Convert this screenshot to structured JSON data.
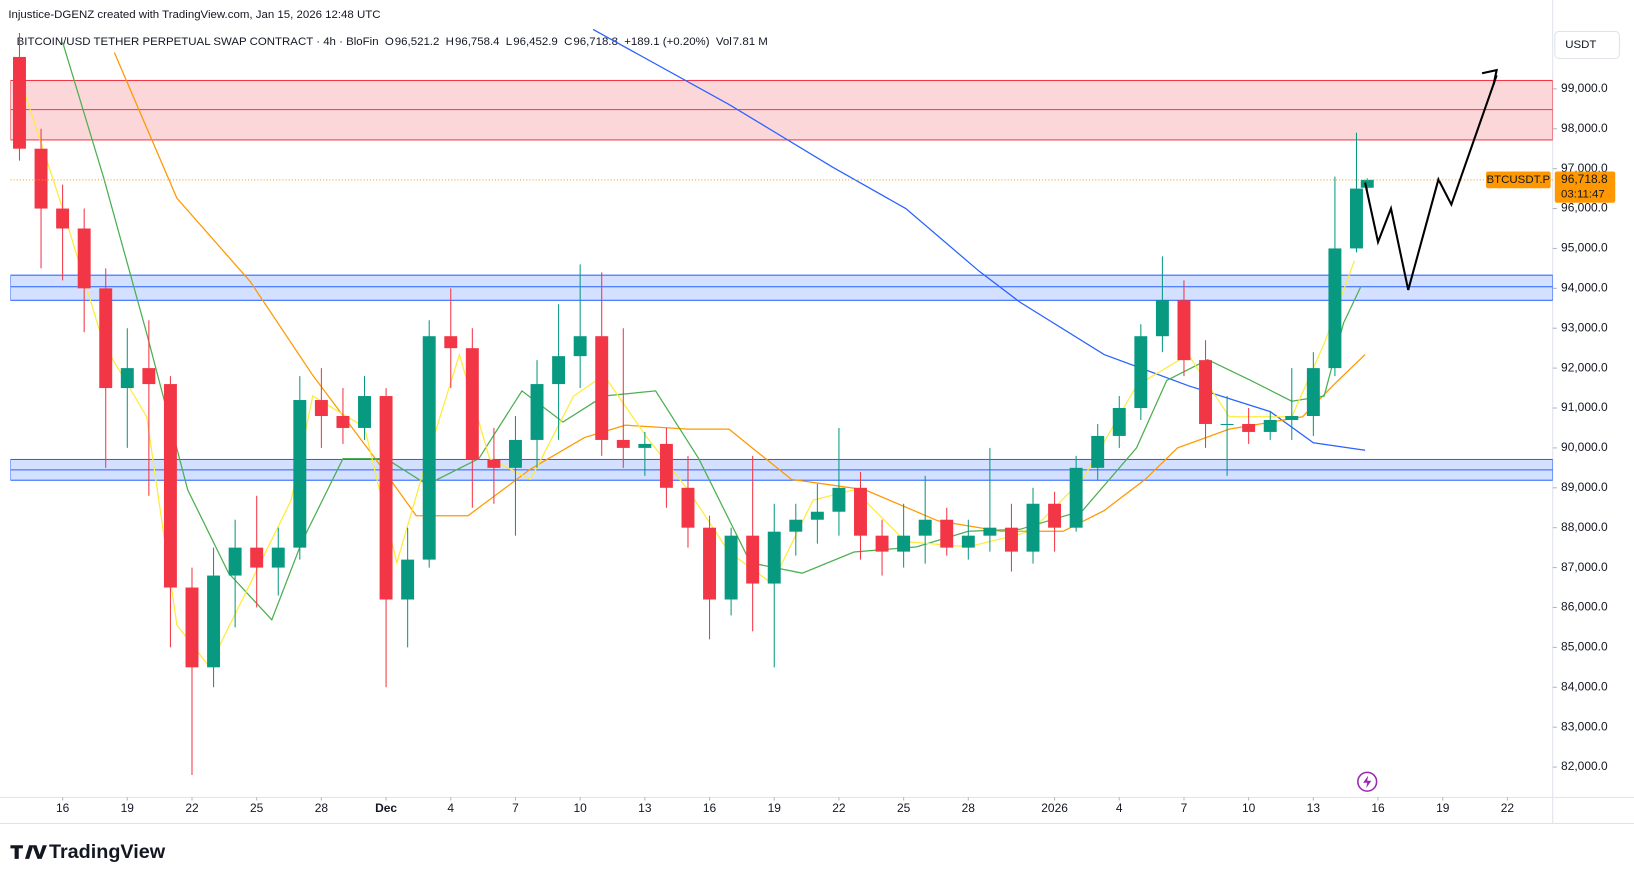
{
  "header": {
    "credit": "Injustice-DGENZ created with TradingView.com, Jan 15, 2026 12:48 UTC",
    "symbol": "BITCOIN/USD TETHER PERPETUAL SWAP CONTRACT · 4h · BloFin",
    "legend": [
      {
        "key": "O",
        "value": "96,521.2"
      },
      {
        "key": "H",
        "value": "96,758.4"
      },
      {
        "key": "L",
        "value": "96,452.9"
      },
      {
        "key": "C",
        "value": "96,718.8"
      },
      {
        "key": "",
        "value": "+189.1 (+0.20%)"
      },
      {
        "key": "Vol",
        "value": "7.81 M"
      }
    ],
    "currency": "USDT"
  },
  "footer": {
    "brand": "TradingView"
  },
  "chart_data": {
    "type": "candlestick",
    "up_color": "#089981",
    "down_color": "#f23645",
    "xlim": [
      -2.42,
      69.1
    ],
    "ylim": [
      81240,
      100570
    ],
    "xticks": [
      {
        "value": 0,
        "label": "16"
      },
      {
        "value": 3,
        "label": "19"
      },
      {
        "value": 6,
        "label": "22"
      },
      {
        "value": 9,
        "label": "25"
      },
      {
        "value": 12,
        "label": "28"
      },
      {
        "value": 15,
        "label": "Dec"
      },
      {
        "value": 18,
        "label": "4"
      },
      {
        "value": 21,
        "label": "7"
      },
      {
        "value": 24,
        "label": "10"
      },
      {
        "value": 27,
        "label": "13"
      },
      {
        "value": 30,
        "label": "16"
      },
      {
        "value": 33,
        "label": "19"
      },
      {
        "value": 36,
        "label": "22"
      },
      {
        "value": 39,
        "label": "25"
      },
      {
        "value": 42,
        "label": "28"
      },
      {
        "value": 46,
        "label": "2026"
      },
      {
        "value": 49,
        "label": "4"
      },
      {
        "value": 52,
        "label": "7"
      },
      {
        "value": 55,
        "label": "10"
      },
      {
        "value": 58,
        "label": "13"
      },
      {
        "value": 61,
        "label": "16"
      },
      {
        "value": 64,
        "label": "19"
      },
      {
        "value": 67,
        "label": "22"
      }
    ],
    "yticks": [
      {
        "value": 82000,
        "label": "82,000.0"
      },
      {
        "value": 83000,
        "label": "83,000.0"
      },
      {
        "value": 84000,
        "label": "84,000.0"
      },
      {
        "value": 85000,
        "label": "85,000.0"
      },
      {
        "value": 86000,
        "label": "86,000.0"
      },
      {
        "value": 87000,
        "label": "87,000.0"
      },
      {
        "value": 88000,
        "label": "88,000.0"
      },
      {
        "value": 89000,
        "label": "89,000.0"
      },
      {
        "value": 90000,
        "label": "90,000.0"
      },
      {
        "value": 91000,
        "label": "91,000.0"
      },
      {
        "value": 92000,
        "label": "92,000.0"
      },
      {
        "value": 93000,
        "label": "93,000.0"
      },
      {
        "value": 94000,
        "label": "94,000.0"
      },
      {
        "value": 95000,
        "label": "95,000.0"
      },
      {
        "value": 96000,
        "label": "96,000.0"
      },
      {
        "value": 97000,
        "label": "97,000.0"
      },
      {
        "value": 98000,
        "label": "98,000.0"
      },
      {
        "value": 99000,
        "label": "99,000.0"
      }
    ],
    "candles": {
      "x": [
        -2,
        -1,
        0,
        1,
        2,
        3,
        4,
        5,
        6,
        7,
        8,
        9,
        10,
        11,
        12,
        13,
        14,
        15,
        16,
        17,
        18,
        19,
        20,
        21,
        22,
        23,
        24,
        25,
        26,
        27,
        28,
        29,
        30,
        31,
        32,
        33,
        34,
        35,
        36,
        37,
        38,
        39,
        40,
        41,
        42,
        43,
        44,
        45,
        46,
        47,
        48,
        49,
        50,
        51,
        52,
        53,
        54,
        55,
        56,
        57,
        58,
        59,
        60,
        60.5
      ],
      "open": [
        99800,
        97500,
        96000,
        95500,
        94000,
        91500,
        92000,
        91600,
        86500,
        84500,
        86800,
        87500,
        87000,
        87500,
        91200,
        90800,
        90500,
        91300,
        86200,
        87200,
        92800,
        92500,
        89700,
        89500,
        90200,
        91600,
        92300,
        92800,
        90200,
        90000,
        90100,
        89000,
        88000,
        86200,
        87800,
        86600,
        87900,
        88200,
        88400,
        89000,
        87800,
        87400,
        87800,
        88200,
        87500,
        87800,
        88000,
        87400,
        88600,
        88000,
        89500,
        90300,
        91000,
        92800,
        93700,
        92200,
        90600,
        90600,
        90400,
        90700,
        90800,
        92000,
        95000,
        96521.2
      ],
      "high": [
        100400,
        98000,
        96600,
        96000,
        94500,
        93000,
        93200,
        91800,
        87000,
        87500,
        88200,
        88800,
        88000,
        91800,
        92000,
        91500,
        91800,
        91500,
        88000,
        93200,
        94000,
        93000,
        90500,
        90800,
        92200,
        93600,
        94600,
        94400,
        93000,
        90400,
        90500,
        89800,
        88300,
        88000,
        89800,
        88600,
        88600,
        89100,
        90500,
        89400,
        88200,
        88600,
        89300,
        88500,
        88200,
        90000,
        88600,
        89000,
        88900,
        89800,
        90600,
        91300,
        93100,
        94800,
        94200,
        92700,
        91300,
        91000,
        90900,
        92000,
        92400,
        96800,
        97900,
        96758.4
      ],
      "low": [
        97200,
        94500,
        94200,
        92900,
        89500,
        90000,
        88800,
        85000,
        81800,
        84000,
        85500,
        86000,
        86300,
        87200,
        90000,
        90100,
        90200,
        84000,
        85000,
        87000,
        91500,
        88500,
        88600,
        87800,
        89500,
        90200,
        91500,
        89800,
        89500,
        89300,
        88500,
        87500,
        85200,
        85800,
        85400,
        84500,
        87300,
        87600,
        87800,
        87200,
        86800,
        87000,
        87100,
        87300,
        87200,
        87400,
        86900,
        87100,
        87400,
        87900,
        89200,
        90000,
        90700,
        92400,
        91800,
        90000,
        89300,
        90100,
        90200,
        90200,
        90300,
        91800,
        94900,
        96452.9
      ],
      "close": [
        97500,
        96000,
        95500,
        94000,
        91500,
        92000,
        91600,
        86500,
        84500,
        86800,
        87500,
        87000,
        87500,
        91200,
        90800,
        90500,
        91300,
        86200,
        87200,
        92800,
        92500,
        89700,
        89500,
        90200,
        91600,
        92300,
        92800,
        90200,
        90000,
        90100,
        89000,
        88000,
        86200,
        87800,
        86600,
        87900,
        88200,
        88400,
        89000,
        87800,
        87400,
        87800,
        88200,
        87500,
        87800,
        88000,
        87400,
        88600,
        88000,
        89500,
        90300,
        91000,
        92800,
        93700,
        92200,
        90600,
        90600,
        90400,
        90700,
        90800,
        92000,
        95000,
        96500,
        96718.8
      ]
    },
    "series": [
      {
        "color": "#2962ff",
        "x": [
          24.6,
          30.9,
          35.7,
          39.1,
          42.5,
          44.4,
          48.3,
          52.2,
          56.0,
          58.0,
          60.4
        ],
        "values": [
          100490,
          98610,
          97040,
          96000,
          94430,
          93650,
          92340,
          91560,
          90910,
          90130,
          89940
        ]
      },
      {
        "color": "#ff9800",
        "x": [
          2.4,
          5.3,
          8.7,
          11.6,
          14.5,
          16.4,
          18.8,
          21.7,
          24.2,
          26.1,
          29.0,
          30.9,
          33.8,
          37.2,
          40.6,
          43.5,
          46.4,
          48.3,
          50.2,
          51.7,
          54.1,
          57.5,
          58.9,
          60.4
        ],
        "values": [
          99910,
          96260,
          94170,
          91820,
          89730,
          88300,
          88300,
          89470,
          90260,
          90570,
          90470,
          90470,
          89210,
          88950,
          88170,
          87910,
          87910,
          88430,
          89210,
          90000,
          90470,
          90780,
          91560,
          92340
        ]
      },
      {
        "color": "#4caf50",
        "x": [
          0,
          1.9,
          3.9,
          5.8,
          7.7,
          9.7,
          11.1,
          13.0,
          15.0,
          16.9,
          19.3,
          21.3,
          23.2,
          25.1,
          27.5,
          29.5,
          31.9,
          34.3,
          36.7,
          39.6,
          42.0,
          44.4,
          47.3,
          49.8,
          51.2,
          53.1,
          55.1,
          57.0,
          58.5,
          59.4,
          60.2
        ],
        "values": [
          100170,
          96780,
          92870,
          88950,
          86860,
          85690,
          87650,
          89730,
          89730,
          89080,
          89730,
          91430,
          90650,
          91300,
          91430,
          89730,
          87120,
          86860,
          87390,
          87520,
          87910,
          87960,
          88430,
          90000,
          91690,
          92210,
          91690,
          91170,
          91300,
          93130,
          94040
        ]
      },
      {
        "color": "#ffeb3b",
        "x": [
          -1.9,
          0,
          1.9,
          3.9,
          5.3,
          6.8,
          8.7,
          10.6,
          11.6,
          14.0,
          15.5,
          16.9,
          18.4,
          19.8,
          21.7,
          23.7,
          25.1,
          27.1,
          29.0,
          30.9,
          32.9,
          34.8,
          36.7,
          39.1,
          42.0,
          44.9,
          47.3,
          49.8,
          52.2,
          54.1,
          57.0,
          58.5,
          59.9
        ],
        "values": [
          99130,
          96000,
          92610,
          90780,
          85560,
          84520,
          86600,
          88690,
          91300,
          90520,
          87120,
          89730,
          92340,
          89730,
          89210,
          91300,
          91820,
          90260,
          88950,
          87390,
          86600,
          88690,
          88950,
          87650,
          87520,
          87910,
          89210,
          91560,
          92340,
          90780,
          90780,
          92610,
          94690
        ]
      }
    ],
    "zones": [
      {
        "color": "#f23645",
        "top": 99210,
        "mid": 98480,
        "bottom": 97720
      },
      {
        "color": "#2962ff",
        "top": 94330,
        "mid": 94040,
        "bottom": 93700
      },
      {
        "color": "#2962ff",
        "top": 89710,
        "mid": 89450,
        "bottom": 89190
      }
    ],
    "projection": {
      "color": "#000000",
      "x": [
        60.4,
        61.0,
        61.6,
        62.4,
        63.8,
        64.4,
        66.5
      ],
      "values": [
        96650,
        95160,
        96000,
        93960,
        96730,
        96100,
        99340
      ]
    },
    "last_price": {
      "value": 96718.8,
      "label": "96,718.8",
      "countdown": "03:11:47",
      "symbol": "BTCUSDT.P",
      "color": "#ff9800"
    }
  }
}
